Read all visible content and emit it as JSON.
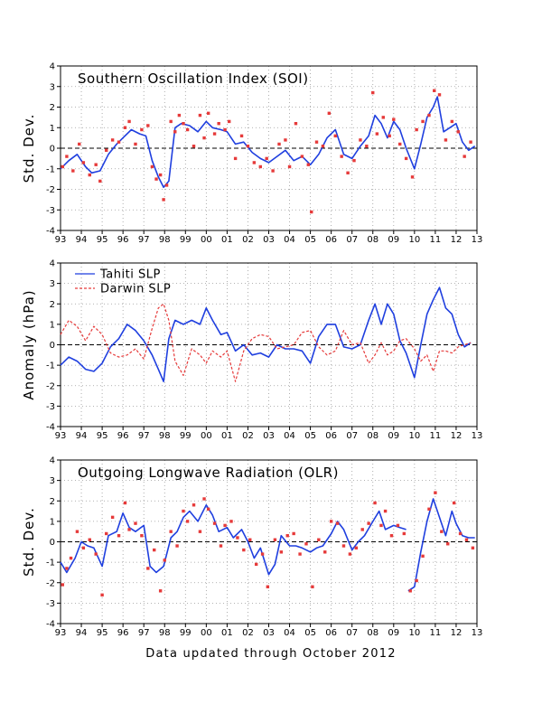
{
  "footer": "Data updated through October 2012",
  "colors": {
    "blue": "#1f3fdf",
    "red": "#e63a3a",
    "grid": "#9a9a9a"
  },
  "chart_data": [
    {
      "type": "line",
      "title": "Southern Oscillation Index (SOI)",
      "ylabel": "Std. Dev.",
      "xlim": [
        1993.0,
        2013.0
      ],
      "ylim": [
        -4,
        4
      ],
      "x_tick_labels": [
        "93",
        "94",
        "95",
        "96",
        "97",
        "98",
        "99",
        "00",
        "01",
        "02",
        "03",
        "04",
        "05",
        "06",
        "07",
        "08",
        "09",
        "10",
        "11",
        "12",
        "13"
      ],
      "y_tick_labels": [
        "-4",
        "-3",
        "-2",
        "-1",
        "0",
        "1",
        "2",
        "3",
        "4"
      ],
      "grid": true,
      "zero_line": true,
      "series": [
        {
          "kind": "line",
          "color": "blue",
          "x": [
            1993.0,
            1993.4,
            1993.8,
            1994.2,
            1994.5,
            1994.9,
            1995.3,
            1995.7,
            1996.0,
            1996.4,
            1996.8,
            1997.1,
            1997.4,
            1997.7,
            1997.95,
            1998.2,
            1998.5,
            1998.8,
            1999.2,
            1999.6,
            2000.0,
            2000.3,
            2000.7,
            2001.0,
            2001.4,
            2001.8,
            2002.2,
            2002.6,
            2003.0,
            2003.4,
            2003.8,
            2004.2,
            2004.6,
            2005.0,
            2005.4,
            2005.8,
            2006.2,
            2006.6,
            2007.0,
            2007.4,
            2007.8,
            2008.1,
            2008.4,
            2008.7,
            2009.0,
            2009.3,
            2009.6,
            2010.0,
            2010.3,
            2010.6,
            2010.9,
            2011.1,
            2011.4,
            2011.7,
            2012.0,
            2012.3,
            2012.6,
            2012.9
          ],
          "y": [
            -1.0,
            -0.6,
            -0.3,
            -0.9,
            -1.2,
            -1.1,
            -0.3,
            0.2,
            0.5,
            0.9,
            0.7,
            0.6,
            -0.6,
            -1.4,
            -1.9,
            -1.6,
            1.0,
            1.2,
            1.1,
            0.8,
            1.3,
            1.0,
            0.9,
            0.8,
            0.2,
            0.3,
            -0.2,
            -0.5,
            -0.7,
            -0.4,
            -0.1,
            -0.6,
            -0.4,
            -0.8,
            -0.3,
            0.5,
            0.9,
            -0.3,
            -0.5,
            0.1,
            0.6,
            1.6,
            1.2,
            0.5,
            1.3,
            0.9,
            0.0,
            -1.0,
            0.2,
            1.5,
            2.0,
            2.5,
            0.8,
            1.0,
            1.2,
            0.3,
            -0.1,
            0.1
          ]
        },
        {
          "kind": "dots",
          "color": "red",
          "x": [
            1993.1,
            1993.3,
            1993.6,
            1993.9,
            1994.1,
            1994.4,
            1994.7,
            1994.9,
            1995.2,
            1995.5,
            1995.8,
            1996.1,
            1996.3,
            1996.6,
            1996.9,
            1997.2,
            1997.4,
            1997.6,
            1997.8,
            1997.95,
            1998.1,
            1998.3,
            1998.5,
            1998.7,
            1998.9,
            1999.1,
            1999.4,
            1999.7,
            1999.9,
            2000.1,
            2000.4,
            2000.6,
            2000.9,
            2001.1,
            2001.4,
            2001.7,
            2002.0,
            2002.3,
            2002.6,
            2002.9,
            2003.2,
            2003.5,
            2003.8,
            2004.0,
            2004.3,
            2004.6,
            2004.9,
            2005.05,
            2005.3,
            2005.6,
            2005.9,
            2006.2,
            2006.5,
            2006.8,
            2007.1,
            2007.4,
            2007.7,
            2008.0,
            2008.2,
            2008.5,
            2008.8,
            2009.0,
            2009.3,
            2009.6,
            2009.9,
            2010.1,
            2010.4,
            2010.7,
            2010.95,
            2011.2,
            2011.5,
            2011.8,
            2012.1,
            2012.4,
            2012.7
          ],
          "y": [
            -0.9,
            -0.4,
            -1.1,
            0.2,
            -0.7,
            -1.3,
            -0.8,
            -1.6,
            -0.1,
            0.4,
            0.3,
            1.0,
            1.3,
            0.2,
            0.9,
            1.1,
            -0.9,
            -1.5,
            -1.3,
            -2.5,
            -1.8,
            1.3,
            0.8,
            1.6,
            1.2,
            0.9,
            0.1,
            1.6,
            0.5,
            1.7,
            0.7,
            1.2,
            0.9,
            1.3,
            -0.5,
            0.6,
            0.1,
            -0.7,
            -0.9,
            -0.5,
            -1.1,
            0.2,
            0.4,
            -0.9,
            1.2,
            -0.4,
            -0.8,
            -3.1,
            0.3,
            0.1,
            1.7,
            0.6,
            -0.4,
            -1.2,
            -0.6,
            0.4,
            0.1,
            2.7,
            0.7,
            1.5,
            0.6,
            1.4,
            0.2,
            -0.5,
            -1.4,
            0.9,
            1.3,
            1.6,
            2.8,
            2.6,
            0.4,
            1.3,
            0.8,
            -0.4,
            0.3
          ]
        }
      ]
    },
    {
      "type": "line",
      "title": "",
      "ylabel": "Anomaly (hPa)",
      "xlim": [
        1993.0,
        2013.0
      ],
      "ylim": [
        -4,
        4
      ],
      "x_tick_labels": [
        "93",
        "94",
        "95",
        "96",
        "97",
        "98",
        "99",
        "00",
        "01",
        "02",
        "03",
        "04",
        "05",
        "06",
        "07",
        "08",
        "09",
        "10",
        "11",
        "12",
        "13"
      ],
      "y_tick_labels": [
        "-4",
        "-3",
        "-2",
        "-1",
        "0",
        "1",
        "2",
        "3",
        "4"
      ],
      "grid": true,
      "zero_line": true,
      "legend": {
        "placement": "top-left",
        "entries": [
          {
            "label": "Tahiti SLP",
            "color": "blue",
            "dash": false
          },
          {
            "label": "Darwin SLP",
            "color": "red",
            "dash": true
          }
        ]
      },
      "series": [
        {
          "name": "Tahiti SLP",
          "kind": "line",
          "color": "blue",
          "dash": false,
          "x": [
            1993.0,
            1993.4,
            1993.8,
            1994.2,
            1994.6,
            1995.0,
            1995.4,
            1995.8,
            1996.2,
            1996.6,
            1997.0,
            1997.4,
            1997.7,
            1997.95,
            1998.2,
            1998.5,
            1998.9,
            1999.3,
            1999.7,
            2000.0,
            2000.3,
            2000.7,
            2001.0,
            2001.4,
            2001.8,
            2002.2,
            2002.6,
            2003.0,
            2003.4,
            2003.8,
            2004.2,
            2004.6,
            2005.0,
            2005.4,
            2005.8,
            2006.2,
            2006.6,
            2007.0,
            2007.4,
            2007.8,
            2008.1,
            2008.4,
            2008.7,
            2009.0,
            2009.3,
            2009.6,
            2010.0,
            2010.3,
            2010.6,
            2010.9,
            2011.2,
            2011.5,
            2011.8,
            2012.1,
            2012.4,
            2012.7
          ],
          "y": [
            -1.0,
            -0.6,
            -0.8,
            -1.2,
            -1.3,
            -0.9,
            -0.1,
            0.3,
            1.0,
            0.7,
            0.2,
            -0.5,
            -1.2,
            -1.8,
            0.3,
            1.2,
            1.0,
            1.2,
            1.0,
            1.8,
            1.2,
            0.5,
            0.6,
            -0.3,
            0.0,
            -0.5,
            -0.4,
            -0.6,
            0.0,
            -0.2,
            -0.2,
            -0.3,
            -0.9,
            0.4,
            1.0,
            1.0,
            -0.1,
            -0.2,
            0.0,
            1.2,
            2.0,
            1.0,
            2.0,
            1.5,
            0.2,
            -0.4,
            -1.6,
            0.0,
            1.5,
            2.2,
            2.8,
            1.8,
            1.5,
            0.5,
            -0.1,
            0.1
          ]
        },
        {
          "name": "Darwin SLP",
          "kind": "line",
          "color": "red",
          "dash": true,
          "x": [
            1993.0,
            1993.4,
            1993.8,
            1994.2,
            1994.6,
            1995.0,
            1995.4,
            1995.8,
            1996.2,
            1996.6,
            1997.0,
            1997.4,
            1997.7,
            1997.95,
            1998.2,
            1998.5,
            1998.9,
            1999.3,
            1999.7,
            2000.0,
            2000.3,
            2000.7,
            2001.0,
            2001.4,
            2001.8,
            2002.2,
            2002.6,
            2003.0,
            2003.4,
            2003.8,
            2004.2,
            2004.6,
            2005.0,
            2005.4,
            2005.8,
            2006.2,
            2006.6,
            2007.0,
            2007.4,
            2007.8,
            2008.1,
            2008.4,
            2008.7,
            2009.0,
            2009.3,
            2009.6,
            2010.0,
            2010.3,
            2010.6,
            2010.9,
            2011.2,
            2011.5,
            2011.8,
            2012.1,
            2012.4,
            2012.7
          ],
          "y": [
            0.5,
            1.2,
            0.9,
            0.2,
            0.9,
            0.5,
            -0.4,
            -0.6,
            -0.5,
            -0.2,
            -0.7,
            0.8,
            1.8,
            2.0,
            1.2,
            -0.8,
            -1.5,
            -0.2,
            -0.5,
            -0.9,
            -0.3,
            -0.6,
            -0.3,
            -1.8,
            -0.3,
            0.3,
            0.5,
            0.4,
            -0.2,
            -0.1,
            0.0,
            0.6,
            0.7,
            -0.1,
            -0.5,
            -0.3,
            0.7,
            0.0,
            0.1,
            -0.9,
            -0.5,
            0.1,
            -0.5,
            -0.3,
            0.2,
            0.3,
            -0.2,
            -0.8,
            -0.5,
            -1.3,
            -0.3,
            -0.3,
            -0.4,
            -0.1,
            0.0,
            0.1
          ]
        }
      ]
    },
    {
      "type": "line",
      "title": "Outgoing Longwave Radiation (OLR)",
      "ylabel": "Std. Dev.",
      "xlim": [
        1993.0,
        2013.0
      ],
      "ylim": [
        -4,
        4
      ],
      "x_tick_labels": [
        "93",
        "94",
        "95",
        "96",
        "97",
        "98",
        "99",
        "00",
        "01",
        "02",
        "03",
        "04",
        "05",
        "06",
        "07",
        "08",
        "09",
        "10",
        "11",
        "12",
        "13"
      ],
      "y_tick_labels": [
        "-4",
        "-3",
        "-2",
        "-1",
        "0",
        "1",
        "2",
        "3",
        "4"
      ],
      "grid": true,
      "zero_line": true,
      "series": [
        {
          "kind": "line",
          "color": "blue",
          "x": [
            1993.0,
            1993.3,
            1993.7,
            1994.0,
            1994.3,
            1994.6,
            1995.0,
            1995.3,
            1995.7,
            1996.0,
            1996.3,
            1996.6,
            1997.0,
            1997.3,
            1997.6,
            1997.95,
            1998.3,
            1998.6,
            1998.9,
            1999.2,
            1999.6,
            2000.0,
            2000.3,
            2000.6,
            2001.0,
            2001.3,
            2001.7,
            2002.0,
            2002.3,
            2002.6,
            2003.0,
            2003.3,
            2003.6,
            2004.0,
            2004.3,
            2004.6,
            2005.0,
            2005.3,
            2005.6,
            2006.0,
            2006.3,
            2006.6,
            2007.0,
            2007.3,
            2007.6,
            2008.0,
            2008.3,
            2008.6,
            2009.0,
            2009.3,
            2009.6
          ],
          "y": [
            -1.0,
            -1.5,
            -0.8,
            0.0,
            -0.2,
            -0.3,
            -1.2,
            0.3,
            0.5,
            1.4,
            0.7,
            0.5,
            0.8,
            -1.2,
            -1.5,
            -1.2,
            0.2,
            0.5,
            1.2,
            1.5,
            1.0,
            1.8,
            1.3,
            0.5,
            0.7,
            0.2,
            0.6,
            0.0,
            -0.8,
            -0.3,
            -1.6,
            -1.1,
            0.3,
            -0.2,
            -0.2,
            -0.3,
            -0.5,
            -0.3,
            -0.2,
            0.4,
            1.0,
            0.6,
            -0.4,
            0.0,
            0.3,
            1.0,
            1.5,
            0.6,
            0.8,
            0.7,
            0.6
          ]
        },
        {
          "kind": "line",
          "color": "blue",
          "x": [
            2009.7,
            2010.0,
            2010.3,
            2010.6,
            2010.9,
            2011.2,
            2011.5,
            2011.8,
            2012.0,
            2012.3,
            2012.6,
            2012.9
          ],
          "y": [
            -2.4,
            -2.2,
            -0.5,
            1.0,
            2.1,
            1.2,
            0.3,
            1.5,
            0.9,
            0.3,
            0.2,
            0.2
          ]
        },
        {
          "kind": "dots",
          "color": "red",
          "x": [
            1993.1,
            1993.3,
            1993.5,
            1993.8,
            1994.1,
            1994.4,
            1994.7,
            1995.0,
            1995.2,
            1995.5,
            1995.8,
            1996.1,
            1996.3,
            1996.6,
            1996.9,
            1997.2,
            1997.5,
            1997.8,
            1998.0,
            1998.3,
            1998.6,
            1998.9,
            1999.1,
            1999.4,
            1999.7,
            1999.9,
            2000.1,
            2000.4,
            2000.7,
            2000.9,
            2001.2,
            2001.5,
            2001.8,
            2002.1,
            2002.4,
            2002.7,
            2002.95,
            2003.3,
            2003.6,
            2003.9,
            2004.2,
            2004.5,
            2004.8,
            2005.1,
            2005.4,
            2005.7,
            2006.0,
            2006.3,
            2006.6,
            2006.9,
            2007.2,
            2007.5,
            2007.8,
            2008.1,
            2008.4,
            2008.6,
            2008.9,
            2009.2,
            2009.5,
            2009.8,
            2010.1,
            2010.4,
            2010.7,
            2011.0,
            2011.3,
            2011.6,
            2011.9,
            2012.2,
            2012.5,
            2012.8
          ],
          "y": [
            -2.1,
            -1.3,
            -0.8,
            0.5,
            -0.3,
            0.1,
            -0.6,
            -2.6,
            0.4,
            1.2,
            0.3,
            1.9,
            0.6,
            0.9,
            0.3,
            -1.3,
            -0.4,
            -2.4,
            -0.9,
            0.5,
            -0.2,
            1.5,
            1.0,
            1.8,
            0.5,
            2.1,
            1.6,
            0.9,
            -0.2,
            0.8,
            1.0,
            0.2,
            -0.4,
            0.1,
            -1.1,
            -0.6,
            -2.2,
            0.1,
            -0.5,
            0.3,
            0.4,
            -0.6,
            -0.1,
            -2.2,
            0.1,
            -0.5,
            1.0,
            0.9,
            -0.2,
            -0.6,
            -0.3,
            0.6,
            0.9,
            1.9,
            0.8,
            1.5,
            0.3,
            0.8,
            0.4,
            -2.4,
            -1.9,
            -0.7,
            1.6,
            2.4,
            0.5,
            -0.1,
            1.9,
            0.4,
            0.1,
            -0.3
          ]
        }
      ]
    }
  ]
}
